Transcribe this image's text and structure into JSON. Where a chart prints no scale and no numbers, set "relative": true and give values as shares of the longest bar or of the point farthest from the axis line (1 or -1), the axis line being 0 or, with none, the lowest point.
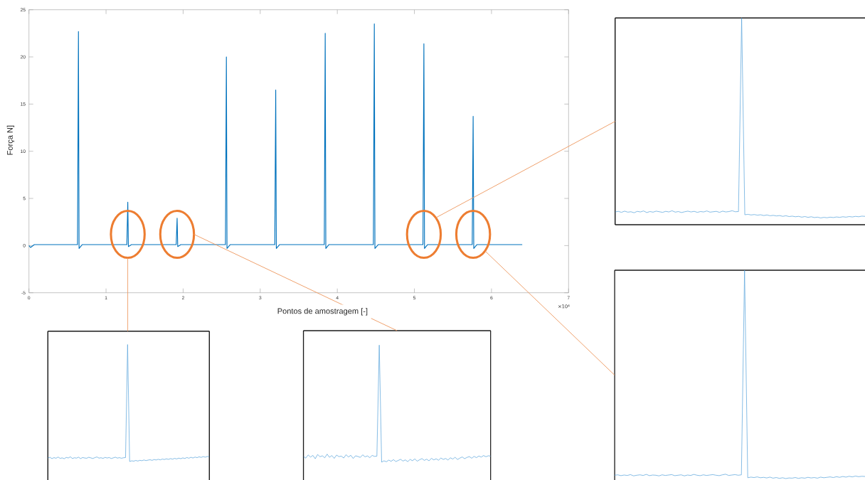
{
  "chart_data": [
    {
      "type": "line",
      "xlabel": "Pontos de amostragem [-]",
      "ylabel": "Força N]",
      "annotations": [
        "×10⁴"
      ],
      "x": [
        0,
        0.02,
        0.07,
        0.3,
        0.63,
        0.642,
        0.65,
        0.69,
        0.95,
        1.27,
        1.282,
        1.29,
        1.33,
        1.6,
        1.91,
        1.922,
        1.93,
        1.97,
        2.25,
        2.549,
        2.561,
        2.569,
        2.61,
        2.9,
        3.189,
        3.201,
        3.209,
        3.25,
        3.55,
        3.831,
        3.843,
        3.851,
        3.89,
        4.18,
        4.468,
        4.48,
        4.488,
        4.53,
        4.82,
        5.111,
        5.123,
        5.131,
        5.17,
        5.45,
        5.75,
        5.762,
        5.77,
        5.81,
        6.1,
        6.399
      ],
      "values": [
        0,
        -0.2,
        0.1,
        0.1,
        0.1,
        22.7,
        -0.3,
        0.1,
        0.1,
        0.1,
        4.6,
        -0.1,
        0.1,
        0.1,
        0.1,
        2.9,
        -0.1,
        0.1,
        0.1,
        0.1,
        20,
        -0.3,
        0.1,
        0.1,
        0.1,
        16.5,
        -0.3,
        0.1,
        0.1,
        0.1,
        22.5,
        -0.3,
        0.1,
        0.1,
        0.1,
        23.5,
        -0.3,
        0.1,
        0.1,
        0.1,
        21.4,
        -0.3,
        0.1,
        0.1,
        0.1,
        13.7,
        -0.3,
        0.1,
        0.1,
        0.1
      ],
      "color": "#0072bd",
      "xlim": [
        0,
        7
      ],
      "ylim": [
        -5,
        25
      ],
      "xticks": [
        0,
        1,
        2,
        3,
        4,
        5,
        6,
        7
      ],
      "yticks": [
        -5,
        0,
        5,
        10,
        15,
        20,
        25
      ]
    },
    {
      "type": "line",
      "relative": true,
      "color": "#5aa5dc",
      "categories": [
        null,
        null,
        null,
        null,
        null,
        null,
        null,
        null,
        null,
        null,
        null,
        null,
        null,
        null,
        null,
        null,
        null,
        null,
        null,
        null,
        null,
        null,
        null,
        null,
        null,
        null,
        null,
        null,
        null,
        null,
        null,
        null,
        null,
        null,
        null,
        null,
        null,
        null,
        null,
        null,
        null,
        null,
        null,
        null,
        null,
        null,
        null,
        null,
        null,
        null,
        null,
        null,
        null,
        null,
        null,
        null,
        null,
        null,
        null,
        null,
        null,
        null,
        null,
        null,
        null,
        null,
        null,
        null,
        null,
        null,
        null,
        null,
        null,
        null,
        null,
        null,
        null,
        null,
        null,
        null
      ],
      "values": [
        0.03,
        0.036,
        0.025,
        0.033,
        0.028,
        0.038,
        0.027,
        0.031,
        0.024,
        0.035,
        0.03,
        0.04,
        0.026,
        0.032,
        0.029,
        0.037,
        0.025,
        0.034,
        0.03,
        0.028,
        0.036,
        0.031,
        0.026,
        0.033,
        0.039,
        0.029,
        0.032,
        0.027,
        0.035,
        0.03,
        0.034,
        0.026,
        0.031,
        0.037,
        0.029,
        0.033,
        0.028,
        0.032,
        0.034,
        1,
        0,
        0.006,
        0.003,
        0.009,
        0.004,
        0.01,
        0.007,
        0.013,
        0.008,
        0.012,
        0.015,
        0.01,
        0.017,
        0.013,
        0.019,
        0.014,
        0.021,
        0.017,
        0.023,
        0.018,
        0.025,
        0.02,
        0.027,
        0.022,
        0.029,
        0.024,
        0.031,
        0.026,
        0.034,
        0.028,
        0.036,
        0.03,
        0.038,
        0.033,
        0.04,
        0.035,
        0.042,
        0.037,
        0.043,
        0.041
      ]
    },
    {
      "type": "line",
      "relative": true,
      "color": "#5aa5dc",
      "categories": [
        null,
        null,
        null,
        null,
        null,
        null,
        null,
        null,
        null,
        null,
        null,
        null,
        null,
        null,
        null,
        null,
        null,
        null,
        null,
        null,
        null,
        null,
        null,
        null,
        null,
        null,
        null,
        null,
        null,
        null,
        null,
        null,
        null,
        null,
        null,
        null,
        null,
        null,
        null,
        null,
        null,
        null,
        null,
        null,
        null,
        null,
        null,
        null,
        null,
        null,
        null,
        null,
        null,
        null,
        null,
        null,
        null,
        null,
        null,
        null,
        null,
        null,
        null,
        null,
        null,
        null,
        null,
        null,
        null,
        null,
        null,
        null,
        null,
        null,
        null,
        null,
        null,
        null,
        null,
        null
      ],
      "values": [
        0.05,
        0.035,
        0.062,
        0.044,
        0.058,
        0.03,
        0.066,
        0.047,
        0.055,
        0.038,
        0.069,
        0.042,
        0.057,
        0.033,
        0.061,
        0.048,
        0.052,
        0.036,
        0.064,
        0.045,
        0.059,
        0.032,
        0.055,
        0.049,
        0.041,
        0.063,
        0.046,
        0.054,
        0.039,
        0.058,
        0.05,
        0.052,
        1,
        0,
        0.012,
        0.004,
        0.018,
        0.008,
        0.022,
        0.006,
        0.015,
        0.025,
        0.01,
        0.02,
        0.005,
        0.024,
        0.013,
        0.028,
        0.009,
        0.021,
        0.031,
        0.016,
        0.026,
        0.012,
        0.033,
        0.02,
        0.029,
        0.017,
        0.036,
        0.024,
        0.032,
        0.019,
        0.038,
        0.027,
        0.042,
        0.023,
        0.035,
        0.045,
        0.03,
        0.041,
        0.048,
        0.034,
        0.05,
        0.039,
        0.053,
        0.044,
        0.057,
        0.047,
        0.055,
        0.052
      ]
    },
    {
      "type": "line",
      "relative": true,
      "color": "#5aa5dc",
      "categories": [
        null,
        null,
        null,
        null,
        null,
        null,
        null,
        null,
        null,
        null,
        null,
        null,
        null,
        null,
        null,
        null,
        null,
        null,
        null,
        null,
        null,
        null,
        null,
        null,
        null,
        null,
        null,
        null,
        null,
        null,
        null,
        null,
        null,
        null,
        null,
        null,
        null,
        null,
        null,
        null,
        null,
        null,
        null,
        null,
        null,
        null,
        null,
        null,
        null,
        null,
        null,
        null,
        null,
        null,
        null,
        null,
        null,
        null,
        null,
        null,
        null,
        null,
        null,
        null,
        null,
        null,
        null,
        null,
        null,
        null,
        null,
        null,
        null,
        null,
        null,
        null,
        null,
        null,
        null,
        null
      ],
      "values": [
        0.03,
        0.033,
        0.028,
        0.034,
        0.029,
        0.031,
        0.026,
        0.033,
        0.03,
        0.035,
        0.027,
        0.032,
        0.029,
        0.034,
        0.031,
        0.028,
        0.033,
        0.03,
        0.036,
        0.029,
        0.032,
        0.027,
        0.031,
        0.034,
        0.03,
        0.033,
        0.028,
        0.032,
        0.03,
        0.035,
        0.029,
        0.031,
        0.033,
        0.028,
        0.034,
        0.03,
        0.032,
        0.036,
        0.031,
        0.032,
        1,
        0.016,
        0.018,
        0.015,
        0.017,
        0.014,
        0.016,
        0.012,
        0.015,
        0.011,
        0.013,
        0.01,
        0.012,
        0.008,
        0.011,
        0.007,
        0.009,
        0.006,
        0.008,
        0.004,
        0.007,
        0.003,
        0.006,
        0.002,
        0.004,
        0,
        0.003,
        0.001,
        0.004,
        0.002,
        0.005,
        0.003,
        0.006,
        0.004,
        0.007,
        0.005,
        0.008,
        0.006,
        0.009,
        0.008
      ]
    },
    {
      "type": "line",
      "relative": true,
      "color": "#5aa5dc",
      "categories": [
        null,
        null,
        null,
        null,
        null,
        null,
        null,
        null,
        null,
        null,
        null,
        null,
        null,
        null,
        null,
        null,
        null,
        null,
        null,
        null,
        null,
        null,
        null,
        null,
        null,
        null,
        null,
        null,
        null,
        null,
        null,
        null,
        null,
        null,
        null,
        null,
        null,
        null,
        null,
        null,
        null,
        null,
        null,
        null,
        null,
        null,
        null,
        null,
        null,
        null,
        null,
        null,
        null,
        null,
        null,
        null,
        null,
        null,
        null,
        null,
        null,
        null,
        null,
        null,
        null,
        null,
        null,
        null,
        null,
        null,
        null,
        null,
        null,
        null,
        null,
        null,
        null,
        null,
        null,
        null
      ],
      "values": [
        0.016,
        0.018,
        0.014,
        0.017,
        0.015,
        0.019,
        0.013,
        0.016,
        0.018,
        0.015,
        0.02,
        0.014,
        0.017,
        0.016,
        0.013,
        0.018,
        0.015,
        0.017,
        0.019,
        0.014,
        0.016,
        0.018,
        0.013,
        0.017,
        0.015,
        0.02,
        0.016,
        0.014,
        0.018,
        0.015,
        0.017,
        0.019,
        0.016,
        0.014,
        0.018,
        0.021,
        0.015,
        0.017,
        0.019,
        0.016,
        0.018,
        1,
        0.004,
        0.007,
        0.005,
        0.008,
        0.004,
        0.006,
        0.003,
        0.007,
        0.002,
        0.005,
        0.001,
        0.004,
        0,
        0.003,
        0.002,
        0.005,
        0.001,
        0.004,
        0.002,
        0.006,
        0.003,
        0.005,
        0.002,
        0.007,
        0.004,
        0.006,
        0.008,
        0.005,
        0.009,
        0.006,
        0.01,
        0.007,
        0.011,
        0.008,
        0.012,
        0.009,
        0.011,
        0.01
      ]
    }
  ]
}
